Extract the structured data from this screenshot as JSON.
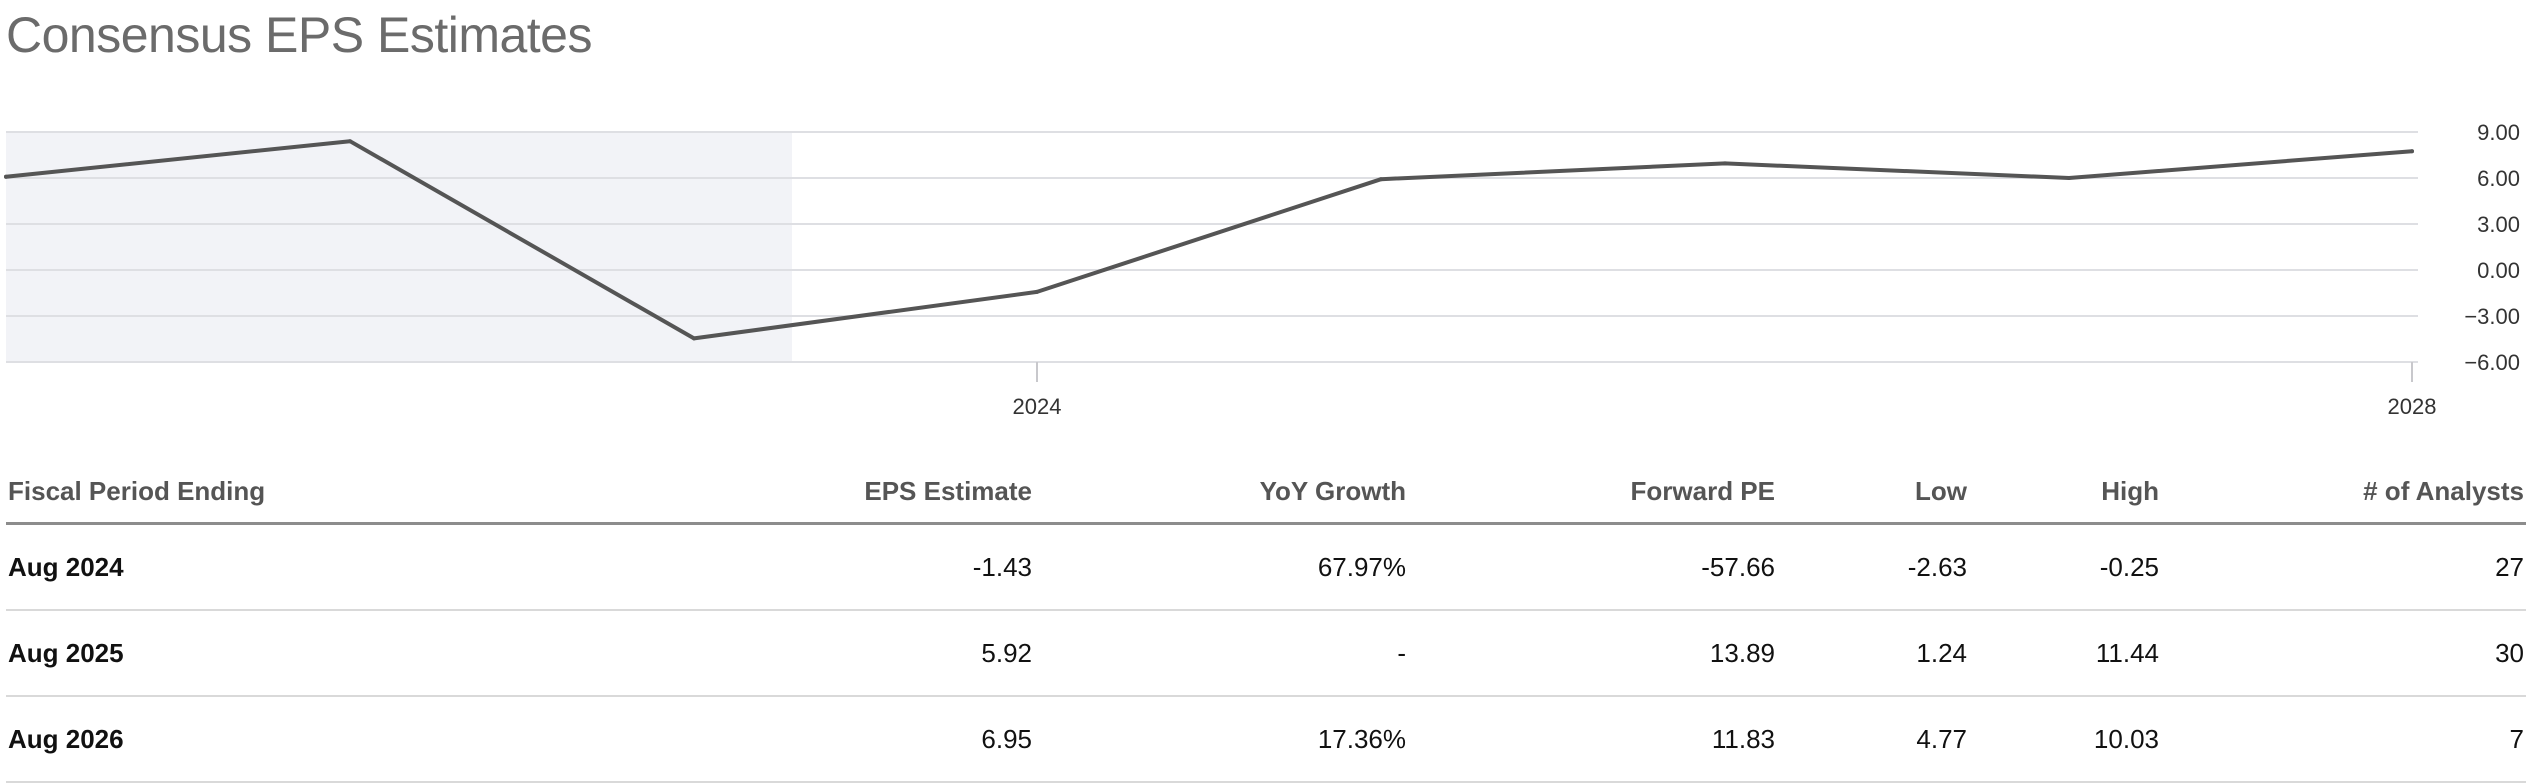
{
  "page": {
    "title": "Consensus EPS Estimates"
  },
  "chart_data": {
    "type": "line",
    "title": "",
    "xlabel": "",
    "ylabel": "",
    "x_tick_labels": [
      "2024",
      "2028"
    ],
    "y_ticks": [
      "9.00",
      "6.00",
      "3.00",
      "0.00",
      "-3.00",
      "-6.00"
    ],
    "ylim": [
      -6,
      9
    ],
    "grid": true,
    "legend": "none",
    "historical_shaded_points": 3,
    "colors": {
      "line": "#555555",
      "shade": "#f2f3f7",
      "grid": "#dedfe3"
    },
    "series": [
      {
        "values": [
          6.08,
          8.4,
          -4.46,
          -1.43,
          5.92,
          6.95,
          6.0,
          7.75
        ]
      }
    ]
  },
  "table": {
    "headers": [
      "Fiscal Period Ending",
      "EPS Estimate",
      "YoY Growth",
      "Forward PE",
      "Low",
      "High",
      "# of Analysts"
    ],
    "rows": [
      [
        "Aug 2024",
        "-1.43",
        "67.97%",
        "-57.66",
        "-2.63",
        "-0.25",
        "27"
      ],
      [
        "Aug 2025",
        "5.92",
        "-",
        "13.89",
        "1.24",
        "11.44",
        "30"
      ],
      [
        "Aug 2026",
        "6.95",
        "17.36%",
        "11.83",
        "4.77",
        "10.03",
        "7"
      ]
    ]
  }
}
